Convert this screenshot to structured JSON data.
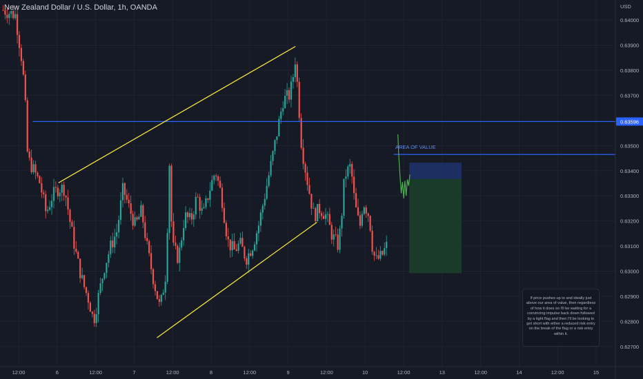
{
  "header": {
    "title": "New Zealand Dollar / U.S. Dollar, 1h, OANDA"
  },
  "colors": {
    "background": "#161a25",
    "grid": "#1f2330",
    "up": "#26a69a",
    "down": "#ef5350",
    "channel": "#f7e33c",
    "level": "#2962ff",
    "badge": "#2962ff",
    "reward": "#1b3d2a",
    "risk": "#1e2f63",
    "projection": "#4caf50"
  },
  "chart_data": {
    "type": "candlestick",
    "currency": "USD",
    "y_ticks": [
      "0.64000",
      "0.63900",
      "0.63800",
      "0.63700",
      "0.63500",
      "0.63400",
      "0.63300",
      "0.63200",
      "0.63100",
      "0.63000",
      "0.62900",
      "0.62800",
      "0.62700"
    ],
    "y_tick_values": [
      0.64,
      0.639,
      0.638,
      0.637,
      0.635,
      0.634,
      0.633,
      0.632,
      0.631,
      0.63,
      0.629,
      0.628,
      0.627
    ],
    "ylim": [
      0.6262,
      0.6408
    ],
    "x_ticks": [
      "12:00",
      "6",
      "12:00",
      "7",
      "12:00",
      "8",
      "12:00",
      "9",
      "12:00",
      "10",
      "12:00",
      "13",
      "12:00",
      "14",
      "12:00",
      "15"
    ],
    "price_badge": "0.63596",
    "horizontal_levels": [
      {
        "price": 0.63596,
        "label": ""
      },
      {
        "price": 0.63465,
        "label": "AREA OF VALUE"
      }
    ],
    "channel_lines": [
      {
        "from": [
          0.095,
          0.63352
        ],
        "to": [
          0.48,
          0.63895
        ]
      },
      {
        "from": [
          0.255,
          0.62735
        ],
        "to": [
          0.515,
          0.63195
        ]
      }
    ],
    "position_tool": {
      "entry": 0.63367,
      "stop": 0.63432,
      "target": 0.62992,
      "x_range": [
        0.665,
        0.75
      ]
    },
    "projection_path": [
      [
        0.6465,
        0.63545
      ],
      [
        0.648,
        0.6346
      ],
      [
        0.65,
        0.6338
      ],
      [
        0.652,
        0.6331
      ],
      [
        0.654,
        0.63355
      ],
      [
        0.656,
        0.6329
      ],
      [
        0.658,
        0.6336
      ],
      [
        0.66,
        0.633
      ],
      [
        0.662,
        0.63365
      ],
      [
        0.664,
        0.6334
      ],
      [
        0.666,
        0.63385
      ]
    ],
    "price_path": [
      [
        0.005,
        0.6404
      ],
      [
        0.025,
        0.6402
      ],
      [
        0.035,
        0.6385
      ],
      [
        0.04,
        0.6372
      ],
      [
        0.045,
        0.6345
      ],
      [
        0.055,
        0.634
      ],
      [
        0.065,
        0.6335
      ],
      [
        0.075,
        0.6323
      ],
      [
        0.085,
        0.633
      ],
      [
        0.095,
        0.6333
      ],
      [
        0.105,
        0.6333
      ],
      [
        0.115,
        0.6318
      ],
      [
        0.125,
        0.6305
      ],
      [
        0.135,
        0.6295
      ],
      [
        0.145,
        0.6288
      ],
      [
        0.152,
        0.628
      ],
      [
        0.16,
        0.629
      ],
      [
        0.17,
        0.6302
      ],
      [
        0.18,
        0.631
      ],
      [
        0.19,
        0.6316
      ],
      [
        0.2,
        0.6333
      ],
      [
        0.21,
        0.6325
      ],
      [
        0.22,
        0.6318
      ],
      [
        0.23,
        0.6324
      ],
      [
        0.24,
        0.6308
      ],
      [
        0.25,
        0.6296
      ],
      [
        0.26,
        0.6285
      ],
      [
        0.27,
        0.63
      ],
      [
        0.275,
        0.6345
      ],
      [
        0.28,
        0.631
      ],
      [
        0.29,
        0.6305
      ],
      [
        0.3,
        0.6322
      ],
      [
        0.31,
        0.632
      ],
      [
        0.32,
        0.633
      ],
      [
        0.33,
        0.6322
      ],
      [
        0.34,
        0.6332
      ],
      [
        0.35,
        0.634
      ],
      [
        0.36,
        0.633
      ],
      [
        0.37,
        0.6312
      ],
      [
        0.38,
        0.6308
      ],
      [
        0.39,
        0.6311
      ],
      [
        0.4,
        0.6305
      ],
      [
        0.41,
        0.631
      ],
      [
        0.42,
        0.6318
      ],
      [
        0.43,
        0.633
      ],
      [
        0.44,
        0.6342
      ],
      [
        0.45,
        0.6355
      ],
      [
        0.46,
        0.6368
      ],
      [
        0.47,
        0.637
      ],
      [
        0.475,
        0.6375
      ],
      [
        0.48,
        0.6385
      ],
      [
        0.485,
        0.6368
      ],
      [
        0.49,
        0.635
      ],
      [
        0.5,
        0.6335
      ],
      [
        0.51,
        0.6322
      ],
      [
        0.52,
        0.6325
      ],
      [
        0.53,
        0.6322
      ],
      [
        0.54,
        0.6314
      ],
      [
        0.55,
        0.631
      ],
      [
        0.555,
        0.6322
      ],
      [
        0.56,
        0.6338
      ],
      [
        0.57,
        0.6342
      ],
      [
        0.575,
        0.633
      ],
      [
        0.58,
        0.6322
      ],
      [
        0.585,
        0.6318
      ],
      [
        0.59,
        0.6328
      ],
      [
        0.6,
        0.6322
      ],
      [
        0.605,
        0.631
      ],
      [
        0.61,
        0.6304
      ],
      [
        0.62,
        0.6306
      ],
      [
        0.628,
        0.631
      ]
    ]
  },
  "annotation": {
    "note": "If price pushes up to and ideally just above our area of value, then regardless of how it does so I'll be waiting for a convincing impulse back down followed by a tight flag and then I'll be looking to get short with either a reduced risk entry on the break of the flag or a risk entry within it."
  }
}
